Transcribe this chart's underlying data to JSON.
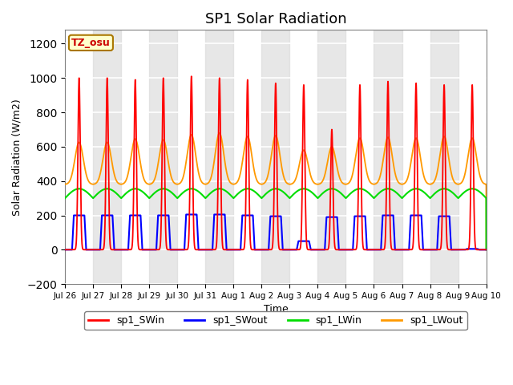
{
  "title": "SP1 Solar Radiation",
  "xlabel": "Time",
  "ylabel": "Solar Radiation (W/m2)",
  "ylim": [
    -200,
    1280
  ],
  "yticks": [
    -200,
    0,
    200,
    400,
    600,
    800,
    1000,
    1200
  ],
  "tz_label": "TZ_osu",
  "colors": {
    "SWin": "#ff0000",
    "SWout": "#0000ff",
    "LWin": "#00dd00",
    "LWout": "#ff9900"
  },
  "legend_labels": [
    "sp1_SWin",
    "sp1_SWout",
    "sp1_LWin",
    "sp1_LWout"
  ],
  "n_days": 15,
  "x_tick_labels": [
    "Jul 26",
    "Jul 27",
    "Jul 28",
    "Jul 29",
    "Jul 30",
    "Jul 31",
    "Aug 1",
    "Aug 2",
    "Aug 3",
    "Aug 4",
    "Aug 5",
    "Aug 6",
    "Aug 7",
    "Aug 8",
    "Aug 9",
    "Aug 10"
  ],
  "SWin_peaks": [
    1000,
    1000,
    990,
    1000,
    1010,
    1000,
    990,
    970,
    960,
    700,
    960,
    980,
    970,
    960,
    960
  ],
  "SWout_peaks": [
    200,
    200,
    200,
    200,
    205,
    205,
    200,
    195,
    50,
    190,
    195,
    200,
    200,
    195,
    5
  ],
  "LWout_peaks": [
    625,
    625,
    645,
    640,
    670,
    680,
    660,
    665,
    580,
    600,
    650,
    655,
    650,
    660,
    650
  ],
  "LWout_base": 380,
  "LWin_base": 300,
  "LWin_amp": 55,
  "bg_band_color": "#d8d8d8",
  "plot_bg": "#f0f0f0"
}
